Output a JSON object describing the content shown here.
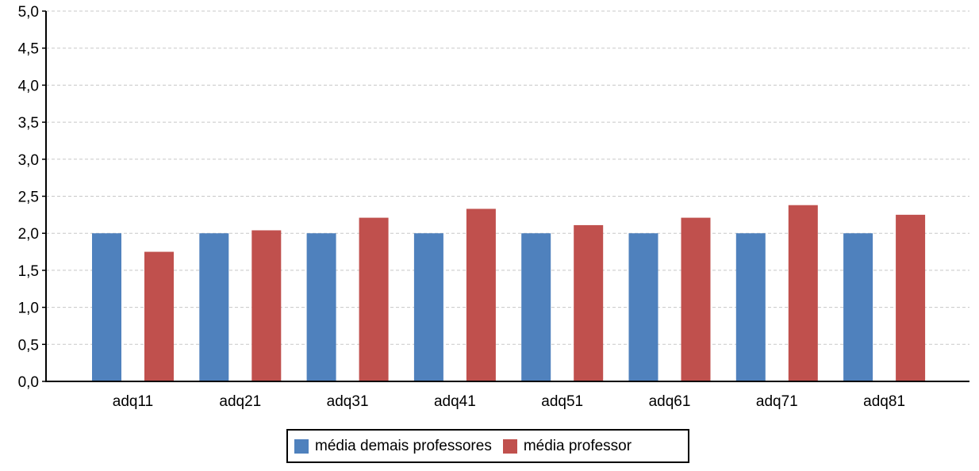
{
  "chart_data": {
    "type": "bar",
    "categories": [
      "adq11",
      "adq21",
      "adq31",
      "adq41",
      "adq51",
      "adq61",
      "adq71",
      "adq81"
    ],
    "series": [
      {
        "name": "média demais professores",
        "color": "#4f81bd",
        "values": [
          2.0,
          2.0,
          2.0,
          2.0,
          2.0,
          2.0,
          2.0,
          2.0
        ]
      },
      {
        "name": "média professor",
        "color": "#c0504d",
        "values": [
          1.75,
          2.04,
          2.21,
          2.33,
          2.11,
          2.21,
          2.38,
          2.25
        ]
      }
    ],
    "ylim": [
      0,
      5
    ],
    "yticks": [
      0,
      0.5,
      1,
      1.5,
      2,
      2.5,
      3,
      3.5,
      4,
      4.5,
      5
    ],
    "ytick_labels": [
      "0,0",
      "0,5",
      "1,0",
      "1,5",
      "2,0",
      "2,5",
      "3,0",
      "3,5",
      "4,0",
      "4,5",
      "5,0"
    ],
    "grid": true,
    "legend_position": "bottom-center",
    "title": "",
    "xlabel": "",
    "ylabel": ""
  }
}
